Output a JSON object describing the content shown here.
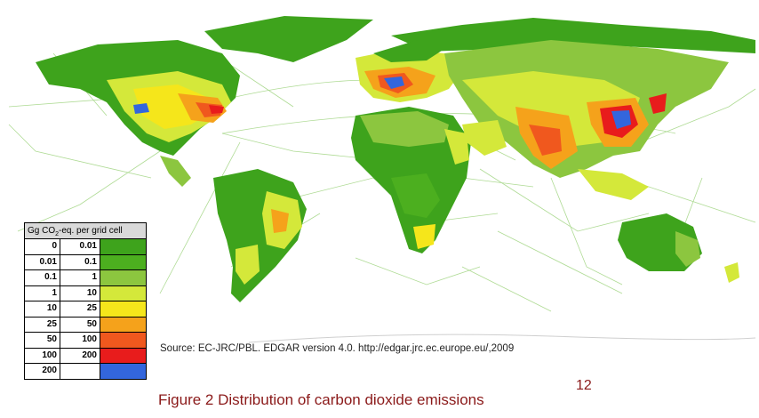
{
  "legend": {
    "header_main": "Gg CO",
    "header_sub": "2",
    "header_rest": "-eq. per grid cell",
    "rows": [
      {
        "from": "0",
        "to": "0.01",
        "color": "#3ea31c"
      },
      {
        "from": "0.01",
        "to": "0.1",
        "color": "#4caf1f"
      },
      {
        "from": "0.1",
        "to": "1",
        "color": "#8cc63f"
      },
      {
        "from": "1",
        "to": "10",
        "color": "#d4e83a"
      },
      {
        "from": "10",
        "to": "25",
        "color": "#f5e61b"
      },
      {
        "from": "25",
        "to": "50",
        "color": "#f5a21b"
      },
      {
        "from": "50",
        "to": "100",
        "color": "#f0581e"
      },
      {
        "from": "100",
        "to": "200",
        "color": "#e81c1c"
      },
      {
        "from": "200",
        "to": "",
        "color": "#3366dd"
      }
    ]
  },
  "source_text": "Source: EC-JRC/PBL. EDGAR version 4.0. http://edgar.jrc.ec.europe.eu/,2009",
  "caption": "Figure 2 Distribution of carbon dioxide emissions",
  "footnote": "12",
  "colors": {
    "ocean": "#ffffff",
    "shipping_lanes": "#9bd27a",
    "caption": "#8b1a1a"
  }
}
